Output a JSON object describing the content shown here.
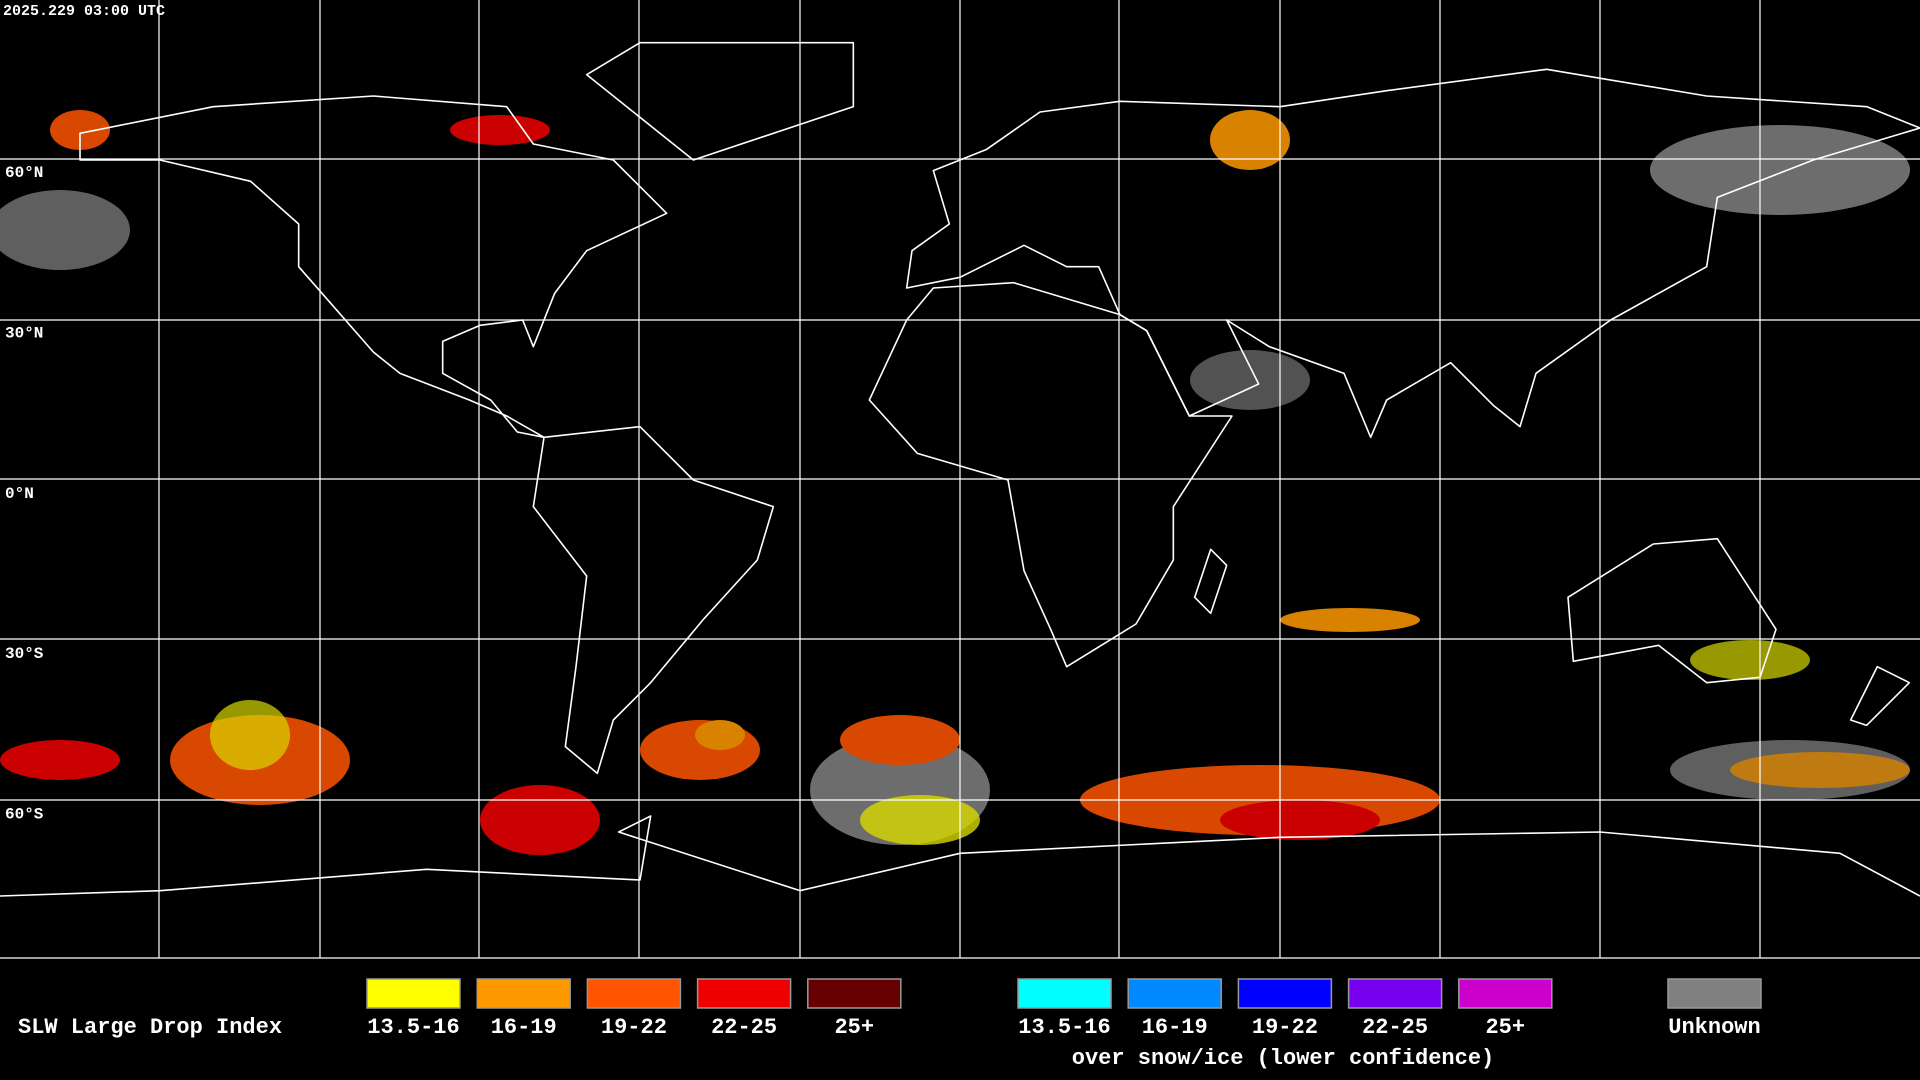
{
  "timestamp": "2025.229 03:00 UTC",
  "latitude_labels": [
    "60°N",
    "30°N",
    "0°N",
    "30°S",
    "60°S"
  ],
  "legend": {
    "title": "SLW Large Drop Index",
    "items": [
      {
        "label": "13.5-16",
        "color": "#ffff00"
      },
      {
        "label": "16-19",
        "color": "#ff9900"
      },
      {
        "label": "19-22",
        "color": "#ff5500"
      },
      {
        "label": "22-25",
        "color": "#ee0000"
      },
      {
        "label": "25+",
        "color": "#660000"
      }
    ],
    "snow_items": [
      {
        "label": "13.5-16",
        "color": "#00ffff"
      },
      {
        "label": "16-19",
        "color": "#0088ff"
      },
      {
        "label": "19-22",
        "color": "#0000ff"
      },
      {
        "label": "22-25",
        "color": "#7700ee"
      },
      {
        "label": "25+",
        "color": "#cc00cc"
      }
    ],
    "snow_caption": "over snow/ice (lower confidence)",
    "unknown": {
      "label": "Unknown",
      "color": "#808080"
    }
  }
}
